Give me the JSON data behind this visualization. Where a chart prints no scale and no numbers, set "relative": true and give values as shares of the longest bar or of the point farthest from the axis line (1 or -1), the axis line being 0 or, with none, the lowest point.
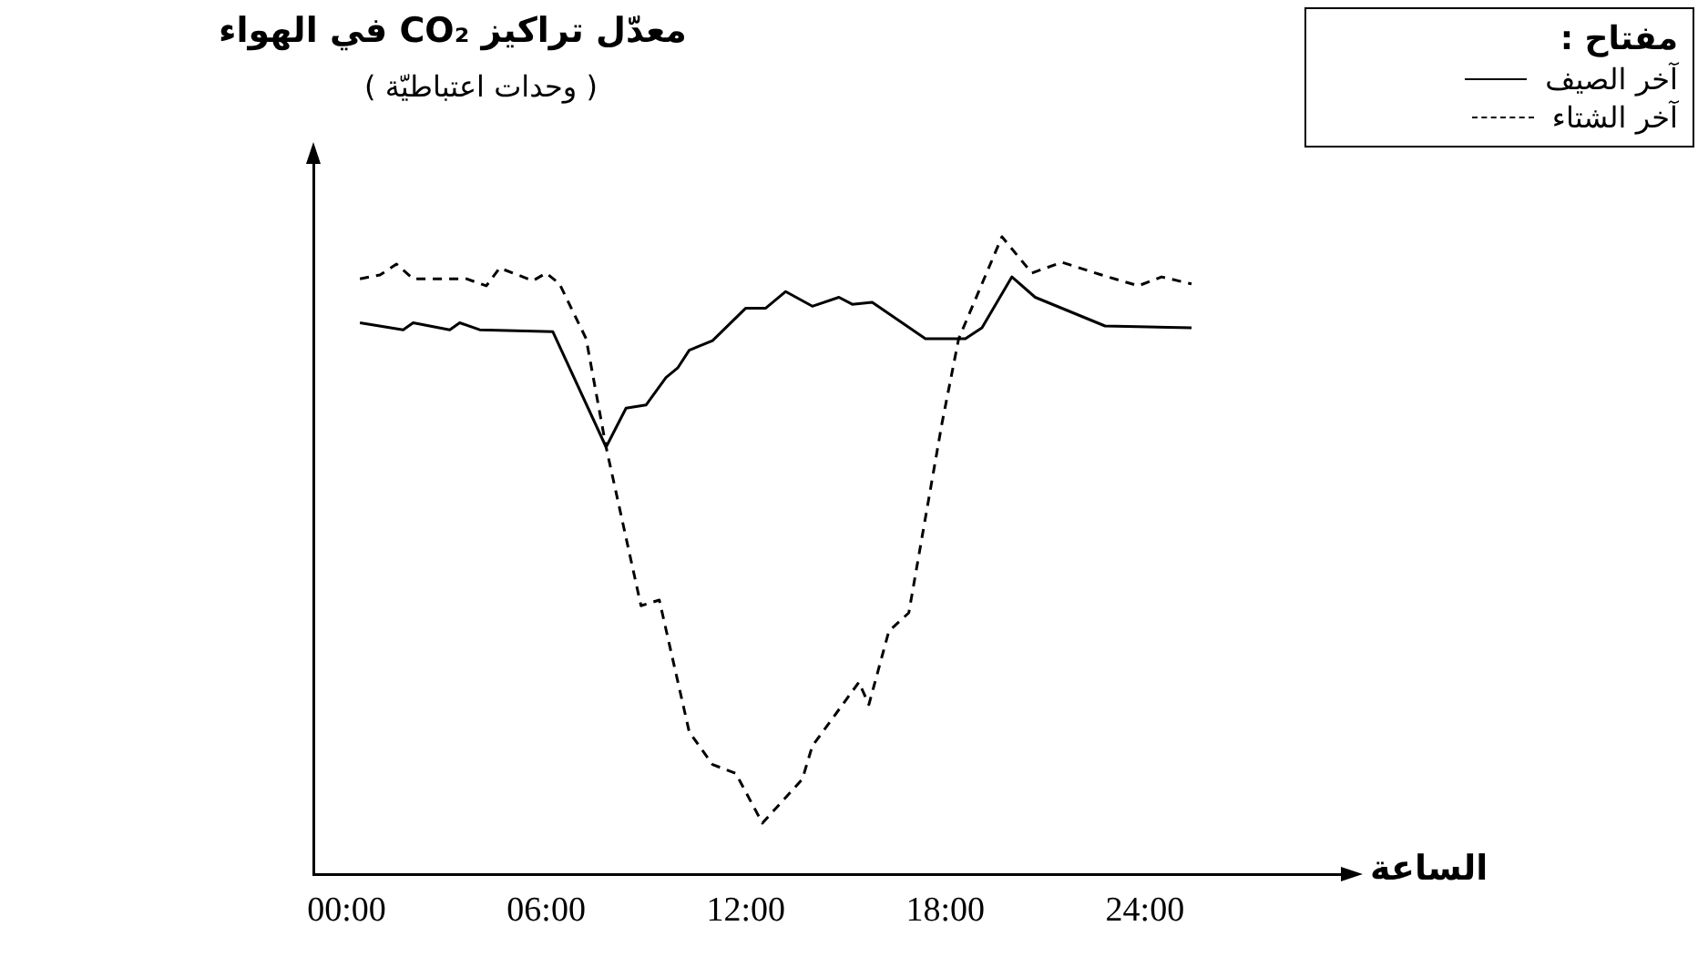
{
  "chart_data": {
    "type": "line",
    "title": "معدّل تراكيز CO₂ في الهواء",
    "xlabel": "الساعة",
    "legend_title": "مفتاح :",
    "annotations": [
      "( وحدات اعتباطيّة )"
    ],
    "relative": true,
    "legend": "top right",
    "tick_labels": "x",
    "grid": false,
    "marker": "none",
    "xlim": [
      -1,
      30
    ],
    "xticks": [
      {
        "value": 0,
        "label": "00:00"
      },
      {
        "value": 6,
        "label": "06:00"
      },
      {
        "value": 12,
        "label": "12:00"
      },
      {
        "value": 18,
        "label": "18:00"
      },
      {
        "value": 24,
        "label": "24:00"
      }
    ],
    "series": [
      {
        "name": "آخر الصيف",
        "color": "#000000",
        "line_style": "solid",
        "x": [
          0.4,
          1.7,
          2.0,
          3.1,
          3.4,
          4.0,
          6.2,
          7.8,
          8.4,
          9.0,
          9.6,
          9.95,
          10.3,
          11.0,
          12.0,
          12.6,
          13.2,
          14.0,
          14.8,
          15.2,
          15.8,
          17.4,
          18.6,
          19.1,
          20.0,
          20.7,
          22.8,
          25.4
        ],
        "values": [
          0.865,
          0.854,
          0.865,
          0.854,
          0.865,
          0.854,
          0.851,
          0.67,
          0.731,
          0.736,
          0.779,
          0.794,
          0.822,
          0.837,
          0.888,
          0.888,
          0.914,
          0.891,
          0.905,
          0.894,
          0.897,
          0.84,
          0.84,
          0.857,
          0.937,
          0.905,
          0.86,
          0.857
        ]
      },
      {
        "name": "آخر الشتاء",
        "color": "#000000",
        "line_style": "dashed",
        "x": [
          0.4,
          1.0,
          1.5,
          2.0,
          3.6,
          4.2,
          4.6,
          5.6,
          6.0,
          6.4,
          7.2,
          7.8,
          8.85,
          9.4,
          10.3,
          11.0,
          11.7,
          12.5,
          13.7,
          14.0,
          15.4,
          15.7,
          16.3,
          16.9,
          17.9,
          18.4,
          19.7,
          20.6,
          21.5,
          22.7,
          23.8,
          24.5,
          25.4
        ],
        "values": [
          0.934,
          0.94,
          0.957,
          0.934,
          0.934,
          0.923,
          0.951,
          0.931,
          0.943,
          0.926,
          0.84,
          0.67,
          0.421,
          0.43,
          0.223,
          0.172,
          0.158,
          0.08,
          0.149,
          0.201,
          0.301,
          0.266,
          0.381,
          0.41,
          0.708,
          0.84,
          1.0,
          0.943,
          0.96,
          0.94,
          0.923,
          0.937,
          0.926
        ]
      }
    ]
  }
}
